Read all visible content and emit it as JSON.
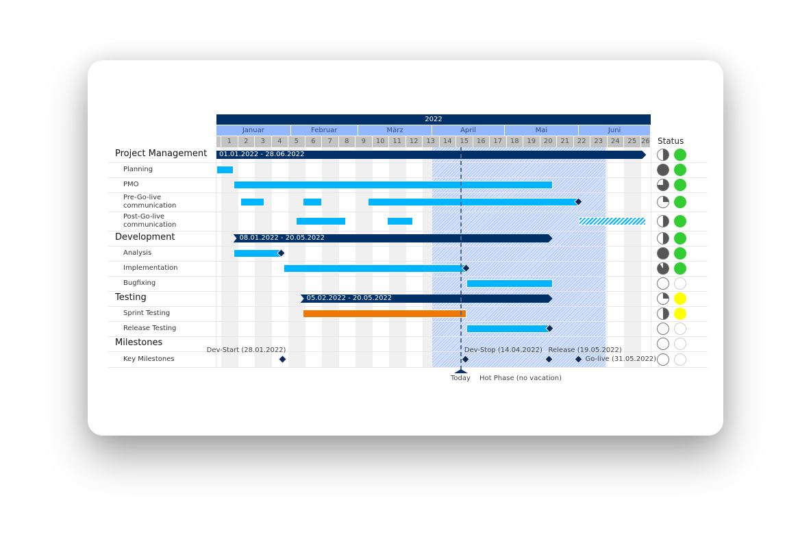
{
  "chart_data": {
    "type": "gantt",
    "year": "2022",
    "months": [
      "Januar",
      "Februar",
      "März",
      "April",
      "Mai",
      "Juni"
    ],
    "weeks": [
      "1",
      "2",
      "3",
      "4",
      "5",
      "6",
      "7",
      "8",
      "9",
      "10",
      "11",
      "12",
      "13",
      "14",
      "15",
      "16",
      "17",
      "18",
      "19",
      "20",
      "21",
      "22",
      "23",
      "24",
      "25",
      "26"
    ],
    "status_header": "Status",
    "today": {
      "date": "12.04.2022",
      "label": "Today"
    },
    "hot_phase": {
      "start": "01.04.2022",
      "end": "11.06.2022",
      "label": "Hot Phase (no vacation)"
    },
    "colors": {
      "summary": "#003066",
      "task": "#00b4ff",
      "sprint": "#f07800",
      "milestone": "#0b2a5a",
      "hot_phase": "#c9d9f7",
      "green": "#33cc33",
      "yellow": "#ffff00"
    },
    "rows": [
      {
        "label": "Project Management",
        "type": "group",
        "bars": [
          {
            "start": "01.01.2022",
            "end": "28.06.2022",
            "text": "01.01.2022 - 28.06.2022",
            "style": "summary"
          }
        ],
        "progress": 0.5,
        "status": "green"
      },
      {
        "label": "Planning",
        "type": "task",
        "bars": [
          {
            "start": "01.01.2022",
            "end": "07.01.2022",
            "style": "task"
          }
        ],
        "progress": 1,
        "status": "green"
      },
      {
        "label": "PMO",
        "type": "task",
        "bars": [
          {
            "start": "08.01.2022",
            "end": "20.05.2022",
            "style": "task"
          }
        ],
        "progress": 0.75,
        "status": "green"
      },
      {
        "label": "Pre-Go-live communication",
        "type": "task",
        "bars": [
          {
            "start": "11.01.2022",
            "end": "20.01.2022",
            "style": "task"
          },
          {
            "start": "06.02.2022",
            "end": "13.02.2022",
            "style": "task"
          },
          {
            "start": "05.03.2022",
            "end": "31.05.2022",
            "style": "task",
            "end_milestone": true
          }
        ],
        "progress": 0.25,
        "status": "green"
      },
      {
        "label": "Post-Go-live communication",
        "type": "task",
        "bars": [
          {
            "start": "03.02.2022",
            "end": "23.02.2022",
            "style": "task"
          },
          {
            "start": "13.03.2022",
            "end": "23.03.2022",
            "style": "task"
          },
          {
            "start": "01.06.2022",
            "end": "28.06.2022",
            "style": "hatched"
          }
        ],
        "progress": 0.5,
        "status": "green"
      },
      {
        "label": "Development",
        "type": "group",
        "bars": [
          {
            "start": "08.01.2022",
            "end": "20.05.2022",
            "text": "08.01.2022 - 20.05.2022",
            "style": "summary"
          }
        ],
        "progress": 0.5,
        "status": "green"
      },
      {
        "label": "Analysis",
        "type": "task",
        "bars": [
          {
            "start": "08.01.2022",
            "end": "27.01.2022",
            "style": "task",
            "end_milestone": true
          }
        ],
        "progress": 1,
        "status": "green"
      },
      {
        "label": "Implementation",
        "type": "task",
        "bars": [
          {
            "start": "29.01.2022",
            "end": "14.04.2022",
            "style": "task",
            "end_milestone": true
          }
        ],
        "progress": 0.9,
        "status": "green"
      },
      {
        "label": "Bugfixing",
        "type": "task",
        "bars": [
          {
            "start": "15.04.2022",
            "end": "20.05.2022",
            "style": "task"
          }
        ],
        "progress": 0,
        "status": "none"
      },
      {
        "label": "Testing",
        "type": "group",
        "bars": [
          {
            "start": "05.02.2022",
            "end": "20.05.2022",
            "text": "05.02.2022 - 20.05.2022",
            "style": "summary"
          }
        ],
        "progress": 0.25,
        "status": "yellow"
      },
      {
        "label": "Sprint Testing",
        "type": "task",
        "bars": [
          {
            "start": "06.02.2022",
            "end": "14.04.2022",
            "style": "sprint"
          }
        ],
        "progress": 0.5,
        "status": "yellow"
      },
      {
        "label": "Release Testing",
        "type": "task",
        "bars": [
          {
            "start": "15.04.2022",
            "end": "19.05.2022",
            "style": "task",
            "end_milestone": true
          }
        ],
        "progress": 0,
        "status": "none"
      },
      {
        "label": "Milestones",
        "type": "group",
        "bars": [],
        "progress": 0,
        "status": "none"
      },
      {
        "label": "Key Milestones",
        "type": "task",
        "bars": [],
        "progress": 0,
        "status": "none",
        "milestones": [
          {
            "date": "28.01.2022",
            "label": "Dev-Start (28.01.2022)",
            "label_pos": "above-left"
          },
          {
            "date": "14.04.2022",
            "label": "Dev-Stop (14.04.2022)",
            "label_pos": "above-right"
          },
          {
            "date": "19.05.2022",
            "label": "Release (19.05.2022)",
            "label_pos": "above-right"
          },
          {
            "date": "31.05.2022",
            "label": "Go-live (31.05.2022)",
            "label_pos": "right"
          }
        ]
      }
    ]
  }
}
